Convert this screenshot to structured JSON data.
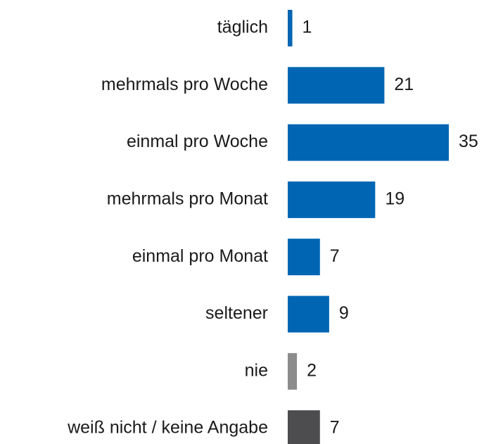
{
  "chart_data": {
    "type": "hbar",
    "categories": [
      "täglich",
      "mehrmals pro Woche",
      "einmal pro Woche",
      "mehrmals pro Monat",
      "einmal pro Monat",
      "seltener",
      "nie",
      "weiß nicht / keine Angabe"
    ],
    "values": [
      1,
      21,
      35,
      19,
      7,
      9,
      2,
      7
    ],
    "colors": [
      "#0066b3",
      "#0066b3",
      "#0066b3",
      "#0066b3",
      "#0066b3",
      "#0066b3",
      "#8c8c8c",
      "#4d4d4f"
    ]
  }
}
